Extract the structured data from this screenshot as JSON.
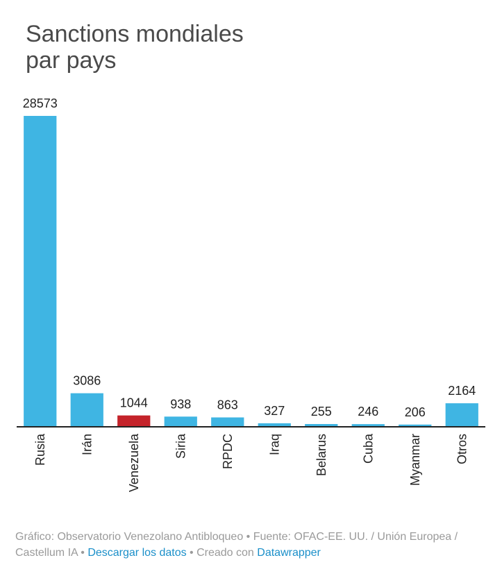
{
  "title_lines": [
    "Sanctions mondiales",
    "par pays"
  ],
  "colors": {
    "bar": "#3fb5e3",
    "highlight": "#c4232a",
    "axis": "#222222",
    "link": "#1a8fc9"
  },
  "chart_data": {
    "type": "bar",
    "title": "Sanctions mondiales par pays",
    "categories": [
      "Rusia",
      "Irán",
      "Venezuela",
      "Siria",
      "RPDC",
      "Iraq",
      "Belarus",
      "Cuba",
      "Myanmar",
      "Otros"
    ],
    "values": [
      28573,
      3086,
      1044,
      938,
      863,
      327,
      255,
      246,
      206,
      2164
    ],
    "value_labels": [
      "28573",
      "3086",
      "1044",
      "938",
      "863",
      "327",
      "255",
      "246",
      "206",
      "2164"
    ],
    "highlighted_category": "Venezuela",
    "xlabel": "",
    "ylabel": "",
    "ylim": [
      0,
      28573
    ]
  },
  "footer": {
    "prefix": "Gráfico: Observatorio Venezolano Antibloqueo • Fuente: OFAC-EE. UU. / Unión Europea / Castellum IA • ",
    "download_link": "Descargar los datos",
    "middle": " • Creado con ",
    "credit_link": "Datawrapper"
  }
}
